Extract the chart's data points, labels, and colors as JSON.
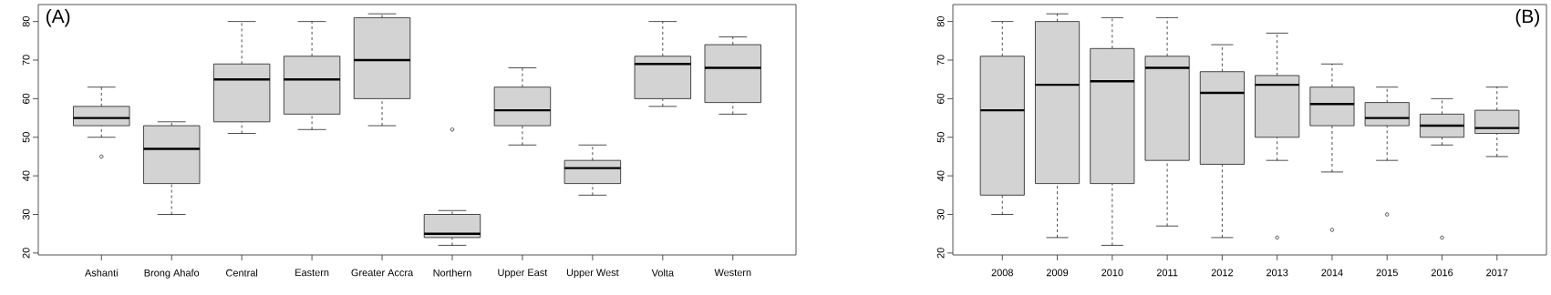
{
  "chart_data": [
    {
      "type": "box",
      "categories": [
        "Ashanti",
        "Brong Ahafo",
        "Central",
        "Eastern",
        "Greater Accra",
        "Northern",
        "Upper East",
        "Upper West",
        "Volta",
        "Western"
      ],
      "boxes": [
        {
          "low": 50,
          "q1": 53,
          "median": 55,
          "q3": 58,
          "high": 63,
          "outliers": [
            45
          ]
        },
        {
          "low": 30,
          "q1": 38,
          "median": 47,
          "q3": 53,
          "high": 54
        },
        {
          "low": 51,
          "q1": 54,
          "median": 65,
          "q3": 69,
          "high": 80
        },
        {
          "low": 52,
          "q1": 56,
          "median": 65,
          "q3": 71,
          "high": 80
        },
        {
          "low": 53,
          "q1": 60,
          "median": 70,
          "q3": 81,
          "high": 82
        },
        {
          "low": 22,
          "q1": 24,
          "median": 25,
          "q3": 30,
          "high": 31,
          "outliers": [
            52
          ]
        },
        {
          "low": 48,
          "q1": 53,
          "median": 57,
          "q3": 63,
          "high": 68
        },
        {
          "low": 35,
          "q1": 38,
          "median": 42,
          "q3": 44,
          "high": 48
        },
        {
          "low": 58,
          "q1": 60,
          "median": 69,
          "q3": 71,
          "high": 80
        },
        {
          "low": 56,
          "q1": 59,
          "median": 68,
          "q3": 74,
          "high": 76
        }
      ],
      "color": "#d3d3d3",
      "ylim": [
        19.5,
        84.4
      ],
      "yticks": [
        20,
        30,
        40,
        50,
        60,
        70,
        80
      ],
      "annotations": [
        "(A)"
      ]
    },
    {
      "type": "box",
      "categories": [
        "2008",
        "2009",
        "2010",
        "2011",
        "2012",
        "2013",
        "2014",
        "2015",
        "2016",
        "2017"
      ],
      "boxes": [
        {
          "low": 30,
          "q1": 35,
          "median": 57,
          "q3": 71,
          "high": 80
        },
        {
          "low": 24,
          "q1": 38,
          "median": 63.6,
          "q3": 80,
          "high": 82
        },
        {
          "low": 22,
          "q1": 38,
          "median": 64.5,
          "q3": 73,
          "high": 81
        },
        {
          "low": 27,
          "q1": 44,
          "median": 68,
          "q3": 71,
          "high": 81
        },
        {
          "low": 24,
          "q1": 43,
          "median": 61.5,
          "q3": 67,
          "high": 74
        },
        {
          "low": 44,
          "q1": 50,
          "median": 63.6,
          "q3": 66,
          "high": 77,
          "outliers": [
            24
          ]
        },
        {
          "low": 41,
          "q1": 53,
          "median": 58.6,
          "q3": 63,
          "high": 69,
          "outliers": [
            26
          ]
        },
        {
          "low": 44,
          "q1": 53,
          "median": 55,
          "q3": 59,
          "high": 63,
          "outliers": [
            30
          ]
        },
        {
          "low": 48,
          "q1": 50,
          "median": 53,
          "q3": 56,
          "high": 60,
          "outliers": [
            24
          ]
        },
        {
          "low": 45,
          "q1": 51,
          "median": 52.4,
          "q3": 57,
          "high": 63
        }
      ],
      "color": "#d3d3d3",
      "ylim": [
        19.5,
        84.4
      ],
      "yticks": [
        20,
        30,
        40,
        50,
        60,
        70,
        80
      ],
      "annotations": [
        "(B)"
      ]
    }
  ]
}
